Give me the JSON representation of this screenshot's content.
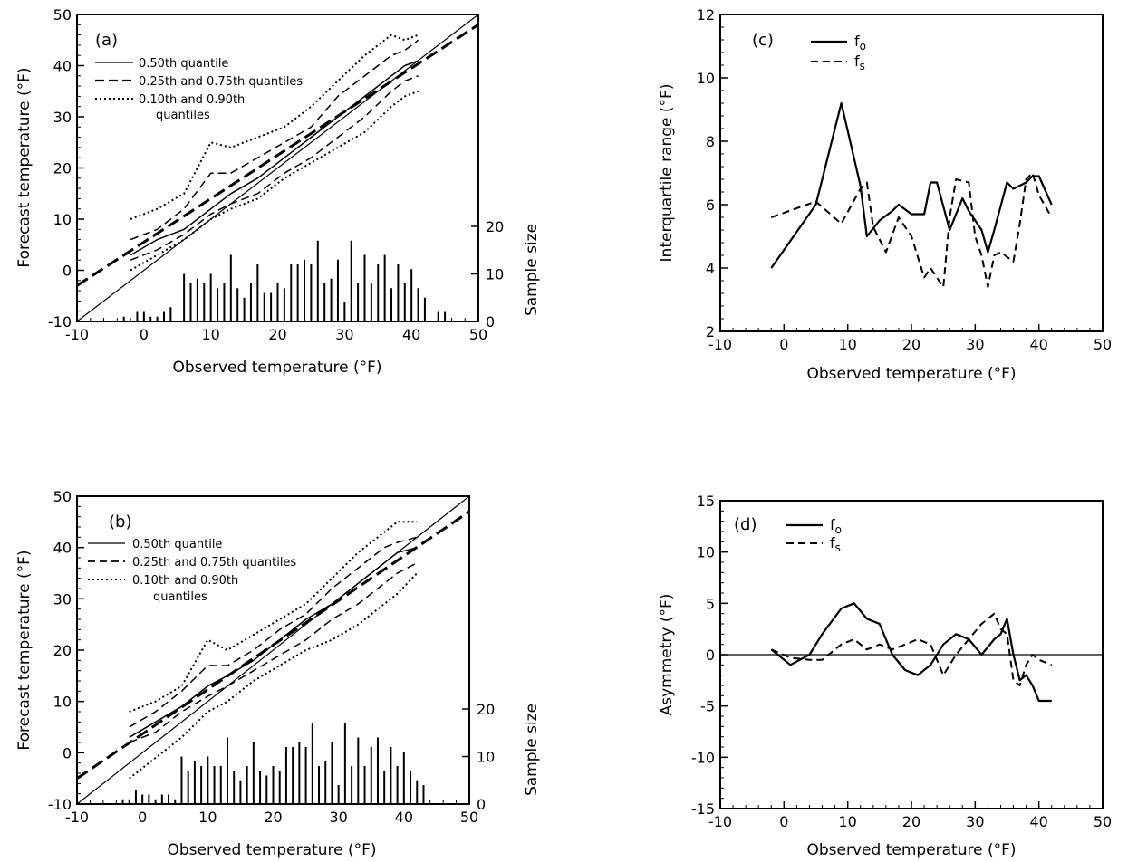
{
  "chart_data": [
    {
      "panel": "(a)",
      "type": "line",
      "xlabel": "Observed temperature (°F)",
      "ylabel": "Forecast temperature (°F)",
      "y2label": "Sample size",
      "xlim": [
        -10,
        50
      ],
      "ylim": [
        -10,
        50
      ],
      "y2lim": [
        0,
        20
      ],
      "xticks": [
        "-10",
        "0",
        "10",
        "20",
        "30",
        "40",
        "50"
      ],
      "yticks": [
        "-10",
        "0",
        "10",
        "20",
        "30",
        "40",
        "50"
      ],
      "y2ticks": [
        "0",
        "10",
        "20"
      ],
      "legend": [
        "0.50th quantile",
        "0.25th and 0.75th quantiles",
        "0.10th and 0.90th",
        "quantiles"
      ],
      "series": [
        {
          "style": "median",
          "x": [
            -2,
            2,
            6,
            10,
            13,
            17,
            21,
            25,
            29,
            33,
            37,
            39,
            41
          ],
          "y": [
            3,
            6,
            8,
            12,
            15,
            18,
            22,
            26,
            30,
            34,
            38,
            40,
            41
          ]
        },
        {
          "style": "q25",
          "x": [
            -2,
            2,
            6,
            10,
            13,
            17,
            21,
            25,
            29,
            33,
            37,
            39,
            41
          ],
          "y": [
            2,
            4,
            7,
            11,
            13,
            15,
            19,
            22,
            26,
            30,
            35,
            37,
            38
          ]
        },
        {
          "style": "q75",
          "x": [
            -2,
            2,
            6,
            10,
            13,
            17,
            21,
            25,
            29,
            33,
            37,
            39,
            41
          ],
          "y": [
            6,
            8,
            12,
            19,
            19,
            22,
            25,
            28,
            34,
            38,
            42,
            43,
            45
          ]
        },
        {
          "style": "q10",
          "x": [
            -2,
            2,
            6,
            10,
            13,
            17,
            21,
            25,
            29,
            33,
            37,
            39,
            41
          ],
          "y": [
            0,
            3,
            6,
            10,
            12,
            14,
            18,
            21,
            24,
            27,
            32,
            34,
            35
          ]
        },
        {
          "style": "q90",
          "x": [
            -2,
            2,
            6,
            10,
            13,
            17,
            21,
            25,
            29,
            33,
            37,
            39,
            41
          ],
          "y": [
            10,
            12,
            15,
            25,
            24,
            26,
            28,
            32,
            37,
            42,
            46,
            45,
            46
          ]
        },
        {
          "style": "fit",
          "x": [
            -10,
            50
          ],
          "y": [
            -3,
            48
          ]
        },
        {
          "style": "diagonal",
          "x": [
            -10,
            50
          ],
          "y": [
            -10,
            50
          ]
        }
      ],
      "sample_size": {
        "x": [
          -3,
          -1,
          0,
          1,
          2,
          3,
          4,
          6,
          7,
          8,
          9,
          10,
          11,
          12,
          13,
          14,
          15,
          16,
          17,
          18,
          19,
          20,
          21,
          22,
          23,
          24,
          25,
          26,
          27,
          28,
          29,
          30,
          31,
          32,
          33,
          34,
          35,
          36,
          37,
          38,
          39,
          40,
          41,
          42,
          44,
          45
        ],
        "values": [
          1,
          2,
          2,
          1,
          1,
          2,
          3,
          10,
          8,
          9,
          8,
          10,
          7,
          8,
          14,
          7,
          5,
          8,
          12,
          6,
          6,
          8,
          7,
          12,
          12,
          13,
          12,
          17,
          8,
          9,
          13,
          4,
          17,
          8,
          14,
          8,
          12,
          14,
          7,
          12,
          8,
          11,
          7,
          5,
          2,
          2
        ]
      }
    },
    {
      "panel": "(b)",
      "type": "line",
      "xlabel": "Observed temperature (°F)",
      "ylabel": "Forecast temperature (°F)",
      "y2label": "Sample size",
      "xlim": [
        -10,
        50
      ],
      "ylim": [
        -10,
        50
      ],
      "y2lim": [
        0,
        20
      ],
      "xticks": [
        "-10",
        "0",
        "10",
        "20",
        "30",
        "40",
        "50"
      ],
      "yticks": [
        "-10",
        "0",
        "10",
        "20",
        "30",
        "40",
        "50"
      ],
      "y2ticks": [
        "0",
        "10",
        "20"
      ],
      "legend": [
        "0.50th quantile",
        "0.25th and 0.75th quantiles",
        "0.10th and 0.90th",
        "quantiles"
      ],
      "series": [
        {
          "style": "median",
          "x": [
            -2,
            2,
            6,
            10,
            13,
            17,
            21,
            25,
            29,
            33,
            37,
            39,
            42
          ],
          "y": [
            3,
            6,
            9,
            13,
            15,
            18,
            22,
            26,
            29,
            33,
            37,
            39,
            40
          ]
        },
        {
          "style": "q25",
          "x": [
            -2,
            2,
            6,
            10,
            13,
            17,
            21,
            25,
            29,
            33,
            37,
            39,
            42
          ],
          "y": [
            2,
            4,
            8,
            11,
            13,
            16,
            19,
            22,
            26,
            29,
            33,
            35,
            37
          ]
        },
        {
          "style": "q75",
          "x": [
            -2,
            2,
            6,
            10,
            13,
            17,
            21,
            25,
            29,
            33,
            37,
            39,
            42
          ],
          "y": [
            5,
            8,
            12,
            17,
            17,
            20,
            24,
            27,
            32,
            36,
            40,
            41,
            42
          ]
        },
        {
          "style": "q10",
          "x": [
            -2,
            2,
            6,
            10,
            13,
            17,
            21,
            25,
            29,
            33,
            37,
            39,
            42
          ],
          "y": [
            -5,
            -1,
            3,
            8,
            10,
            14,
            17,
            20,
            22,
            25,
            29,
            31,
            35
          ]
        },
        {
          "style": "q90",
          "x": [
            -2,
            2,
            6,
            10,
            13,
            17,
            21,
            25,
            29,
            33,
            37,
            39,
            42
          ],
          "y": [
            8,
            10,
            13,
            22,
            20,
            23,
            26,
            29,
            34,
            39,
            43,
            45,
            45
          ]
        },
        {
          "style": "fit",
          "x": [
            -10,
            50
          ],
          "y": [
            -5,
            47
          ]
        },
        {
          "style": "diagonal",
          "x": [
            -10,
            50
          ],
          "y": [
            -10,
            50
          ]
        }
      ],
      "sample_size": {
        "x": [
          -3,
          -2,
          -1,
          0,
          1,
          2,
          3,
          4,
          5,
          6,
          7,
          8,
          9,
          10,
          11,
          12,
          13,
          14,
          15,
          16,
          17,
          18,
          19,
          20,
          21,
          22,
          23,
          24,
          25,
          26,
          27,
          28,
          29,
          30,
          31,
          32,
          33,
          34,
          35,
          36,
          37,
          38,
          39,
          40,
          41,
          42,
          43
        ],
        "values": [
          1,
          1,
          3,
          2,
          2,
          1,
          2,
          2,
          1,
          10,
          7,
          9,
          8,
          10,
          8,
          8,
          14,
          7,
          5,
          8,
          13,
          7,
          6,
          8,
          7,
          12,
          12,
          13,
          12,
          17,
          8,
          9,
          13,
          4,
          17,
          8,
          14,
          8,
          12,
          14,
          7,
          12,
          8,
          11,
          7,
          5,
          4
        ]
      }
    },
    {
      "panel": "(c)",
      "type": "line",
      "xlabel": "Observed temperature (°F)",
      "ylabel": "Interquartile range (°F)",
      "xlim": [
        -10,
        50
      ],
      "ylim": [
        2,
        12
      ],
      "xticks": [
        "-10",
        "0",
        "10",
        "20",
        "30",
        "40",
        "50"
      ],
      "yticks": [
        "2",
        "4",
        "6",
        "8",
        "10",
        "12"
      ],
      "series": [
        {
          "name": "fo",
          "style": "solid",
          "x": [
            -2,
            5,
            9,
            12,
            13,
            15,
            17,
            18,
            20,
            22,
            23,
            24,
            26,
            28,
            29,
            31,
            32,
            33,
            35,
            36,
            38,
            39,
            40,
            42
          ],
          "y": [
            4,
            6,
            9.2,
            6.6,
            5,
            5.5,
            5.8,
            6.0,
            5.7,
            5.7,
            6.7,
            6.7,
            5.2,
            6.2,
            5.8,
            5.2,
            4.5,
            5.2,
            6.7,
            6.5,
            6.7,
            6.9,
            6.9,
            6.0
          ]
        },
        {
          "name": "fs",
          "style": "dashed",
          "x": [
            -2,
            5,
            9,
            12,
            13,
            14,
            16,
            18,
            20,
            22,
            23,
            24,
            25,
            26,
            27,
            29,
            30,
            31,
            32,
            33,
            34,
            36,
            37,
            38,
            39,
            40,
            42
          ],
          "y": [
            5.6,
            6.1,
            5.4,
            6.5,
            6.7,
            5.3,
            4.5,
            5.6,
            5.0,
            3.7,
            4.0,
            3.7,
            3.4,
            5.6,
            6.8,
            6.7,
            5.0,
            4.4,
            3.4,
            4.4,
            4.5,
            4.2,
            5.4,
            6.8,
            7.0,
            6.3,
            5.6
          ]
        }
      ]
    },
    {
      "panel": "(d)",
      "type": "line",
      "xlabel": "Observed temperature (°F)",
      "ylabel": "Asymmetry (°F)",
      "xlim": [
        -10,
        50
      ],
      "ylim": [
        -15,
        15
      ],
      "xticks": [
        "-10",
        "0",
        "10",
        "20",
        "30",
        "40",
        "50"
      ],
      "yticks": [
        "-15",
        "-10",
        "-5",
        "0",
        "5",
        "10",
        "15"
      ],
      "series": [
        {
          "name": "fo",
          "style": "solid",
          "x": [
            -2,
            1,
            4,
            6,
            9,
            11,
            13,
            15,
            17,
            19,
            21,
            23,
            25,
            27,
            29,
            31,
            33,
            34,
            35,
            36,
            37,
            38,
            39,
            40,
            42
          ],
          "y": [
            0.5,
            -1,
            0,
            2,
            4.5,
            5,
            3.5,
            3,
            0,
            -1.5,
            -2,
            -1,
            1,
            2,
            1.5,
            0,
            1.5,
            2,
            3.5,
            0,
            -2.5,
            -2,
            -3,
            -4.5,
            -4.5
          ]
        },
        {
          "name": "fs",
          "style": "dashed",
          "x": [
            -2,
            1,
            4,
            6,
            9,
            11,
            13,
            15,
            17,
            19,
            21,
            23,
            25,
            27,
            29,
            31,
            33,
            34,
            35,
            36,
            37,
            38,
            39,
            40,
            42
          ],
          "y": [
            0.5,
            -0.3,
            -0.5,
            -0.5,
            1,
            1.5,
            0.5,
            1,
            0.5,
            1,
            1.5,
            1,
            -2,
            0,
            1.5,
            3,
            4,
            2.5,
            2,
            -2.5,
            -3,
            -1,
            0,
            -0.5,
            -1
          ]
        },
        {
          "name": "zero",
          "style": "thin",
          "x": [
            -10,
            50
          ],
          "y": [
            0,
            0
          ]
        }
      ]
    }
  ],
  "labels": {
    "panel_a": "(a)",
    "panel_b": "(b)",
    "panel_c": "(c)",
    "panel_d": "(d)",
    "legend_median": "0.50th quantile",
    "legend_quartiles": "0.25th and 0.75th quantiles",
    "legend_deciles_1": "0.10th and 0.90th",
    "legend_deciles_2": "quantiles",
    "fo_base": "f",
    "fo_sub": "o",
    "fs_base": "f",
    "fs_sub": "s",
    "xlabel": "Observed temperature (°F)",
    "ylabel_forecast": "Forecast temperature (°F)",
    "ylabel_sample": "Sample size",
    "ylabel_iqr": "Interquartile range (°F)",
    "ylabel_asym": "Asymmetry (°F)"
  }
}
